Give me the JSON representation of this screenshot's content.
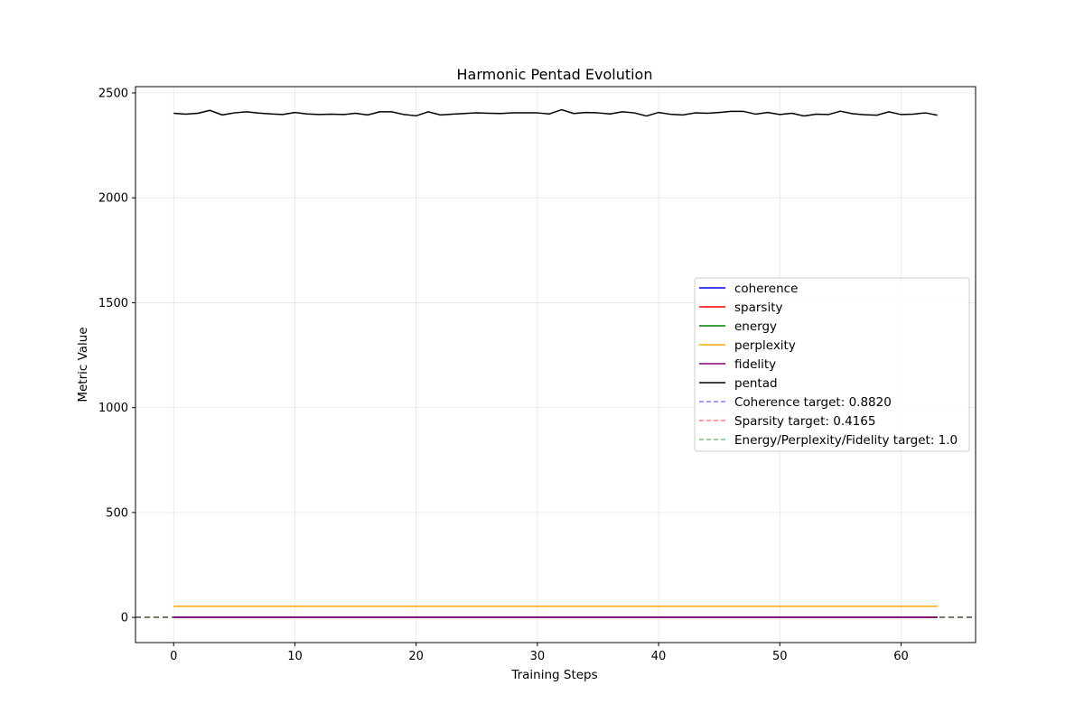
{
  "chart_data": {
    "type": "line",
    "title": "Harmonic Pentad Evolution",
    "xlabel": "Training Steps",
    "ylabel": "Metric Value",
    "xlim": [
      -3.15,
      66.15
    ],
    "ylim": [
      -120.0,
      2530.0
    ],
    "xticks": [
      0,
      10,
      20,
      30,
      40,
      50,
      60
    ],
    "yticks": [
      0,
      500,
      1000,
      1500,
      2000,
      2500
    ],
    "grid": true,
    "legend_position": "center-right",
    "x": [
      0,
      1,
      2,
      3,
      4,
      5,
      6,
      7,
      8,
      9,
      10,
      11,
      12,
      13,
      14,
      15,
      16,
      17,
      18,
      19,
      20,
      21,
      22,
      23,
      24,
      25,
      26,
      27,
      28,
      29,
      30,
      31,
      32,
      33,
      34,
      35,
      36,
      37,
      38,
      39,
      40,
      41,
      42,
      43,
      44,
      45,
      46,
      47,
      48,
      49,
      50,
      51,
      52,
      53,
      54,
      55,
      56,
      57,
      58,
      59,
      60,
      61,
      62,
      63
    ],
    "series": [
      {
        "name": "coherence",
        "color": "#0000ff",
        "style": "solid",
        "values": [
          0.88,
          0.88,
          0.88,
          0.88,
          0.88,
          0.88,
          0.88,
          0.88,
          0.88,
          0.88,
          0.88,
          0.88,
          0.88,
          0.88,
          0.88,
          0.88,
          0.88,
          0.88,
          0.88,
          0.88,
          0.88,
          0.88,
          0.88,
          0.88,
          0.88,
          0.88,
          0.88,
          0.88,
          0.88,
          0.88,
          0.88,
          0.88,
          0.88,
          0.88,
          0.88,
          0.88,
          0.88,
          0.88,
          0.88,
          0.88,
          0.88,
          0.88,
          0.88,
          0.88,
          0.88,
          0.88,
          0.88,
          0.88,
          0.88,
          0.88,
          0.88,
          0.88,
          0.88,
          0.88,
          0.88,
          0.88,
          0.88,
          0.88,
          0.88,
          0.88,
          0.88,
          0.88,
          0.88,
          0.88
        ]
      },
      {
        "name": "sparsity",
        "color": "#ff0000",
        "style": "solid",
        "values": [
          0.42,
          0.42,
          0.42,
          0.42,
          0.42,
          0.42,
          0.42,
          0.42,
          0.42,
          0.42,
          0.42,
          0.42,
          0.42,
          0.42,
          0.42,
          0.42,
          0.42,
          0.42,
          0.42,
          0.42,
          0.42,
          0.42,
          0.42,
          0.42,
          0.42,
          0.42,
          0.42,
          0.42,
          0.42,
          0.42,
          0.42,
          0.42,
          0.42,
          0.42,
          0.42,
          0.42,
          0.42,
          0.42,
          0.42,
          0.42,
          0.42,
          0.42,
          0.42,
          0.42,
          0.42,
          0.42,
          0.42,
          0.42,
          0.42,
          0.42,
          0.42,
          0.42,
          0.42,
          0.42,
          0.42,
          0.42,
          0.42,
          0.42,
          0.42,
          0.42,
          0.42,
          0.42,
          0.42,
          0.42
        ]
      },
      {
        "name": "energy",
        "color": "#008000",
        "style": "solid",
        "values": [
          1,
          1,
          1,
          1,
          1,
          1,
          1,
          1,
          1,
          1,
          1,
          1,
          1,
          1,
          1,
          1,
          1,
          1,
          1,
          1,
          1,
          1,
          1,
          1,
          1,
          1,
          1,
          1,
          1,
          1,
          1,
          1,
          1,
          1,
          1,
          1,
          1,
          1,
          1,
          1,
          1,
          1,
          1,
          1,
          1,
          1,
          1,
          1,
          1,
          1,
          1,
          1,
          1,
          1,
          1,
          1,
          1,
          1,
          1,
          1,
          1,
          1,
          1,
          1
        ]
      },
      {
        "name": "perplexity",
        "color": "#ffa500",
        "style": "solid",
        "values": [
          53,
          53,
          53,
          53,
          53,
          53,
          53,
          53,
          53,
          53,
          53,
          53,
          53,
          53,
          53,
          53,
          53,
          53,
          53,
          53,
          53,
          53,
          53,
          53,
          53,
          53,
          53,
          53,
          53,
          53,
          53,
          53,
          53,
          53,
          53,
          53,
          53,
          53,
          53,
          53,
          53,
          53,
          53,
          53,
          53,
          53,
          53,
          53,
          53,
          53,
          53,
          53,
          53,
          53,
          53,
          53,
          53,
          53,
          53,
          53,
          53,
          53,
          53,
          53
        ]
      },
      {
        "name": "fidelity",
        "color": "#800080",
        "style": "solid",
        "values": [
          1,
          1,
          1,
          1,
          1,
          1,
          1,
          1,
          1,
          1,
          1,
          1,
          1,
          1,
          1,
          1,
          1,
          1,
          1,
          1,
          1,
          1,
          1,
          1,
          1,
          1,
          1,
          1,
          1,
          1,
          1,
          1,
          1,
          1,
          1,
          1,
          1,
          1,
          1,
          1,
          1,
          1,
          1,
          1,
          1,
          1,
          1,
          1,
          1,
          1,
          1,
          1,
          1,
          1,
          1,
          1,
          1,
          1,
          1,
          1,
          1,
          1,
          1,
          1
        ]
      },
      {
        "name": "pentad",
        "color": "#000000",
        "style": "solid",
        "values": [
          2403,
          2399,
          2403,
          2417,
          2395,
          2405,
          2410,
          2404,
          2400,
          2397,
          2407,
          2400,
          2397,
          2399,
          2397,
          2403,
          2395,
          2410,
          2410,
          2397,
          2391,
          2410,
          2395,
          2399,
          2402,
          2405,
          2403,
          2402,
          2405,
          2405,
          2405,
          2400,
          2420,
          2402,
          2407,
          2405,
          2400,
          2410,
          2405,
          2390,
          2407,
          2398,
          2395,
          2405,
          2403,
          2407,
          2412,
          2412,
          2399,
          2407,
          2397,
          2403,
          2390,
          2399,
          2397,
          2413,
          2401,
          2396,
          2394,
          2410,
          2397,
          2399,
          2405,
          2394
        ]
      },
      {
        "name": "Coherence target: 0.8820",
        "color": "#0000ff",
        "style": "dashed",
        "alpha": 0.5,
        "hline": 0.882
      },
      {
        "name": "Sparsity target: 0.4165",
        "color": "#ff0000",
        "style": "dashed",
        "alpha": 0.5,
        "hline": 0.4165
      },
      {
        "name": "Energy/Perplexity/Fidelity target: 1.0",
        "color": "#008000",
        "style": "dashed",
        "alpha": 0.5,
        "hline": 1.0
      }
    ]
  }
}
